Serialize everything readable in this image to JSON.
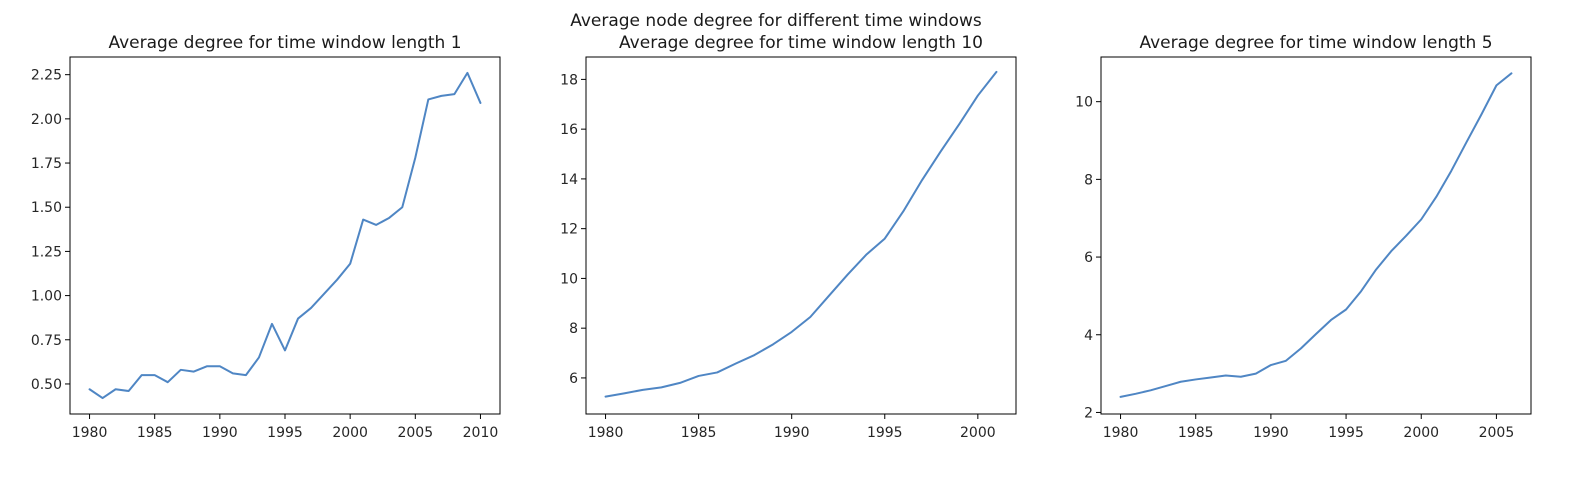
{
  "figure": {
    "suptitle": "Average node degree for different time windows"
  },
  "line_color": "#4f86c4",
  "chart_data": [
    {
      "type": "line",
      "title": "Average degree for time window length 1",
      "xlabel": "",
      "ylabel": "",
      "xlim": [
        1978.5,
        2011.5
      ],
      "ylim": [
        0.33,
        2.35
      ],
      "xticks": [
        1980,
        1985,
        1990,
        1995,
        2000,
        2005,
        2010
      ],
      "yticks": [
        0.5,
        0.75,
        1.0,
        1.25,
        1.5,
        1.75,
        2.0,
        2.25
      ],
      "ytick_labels": [
        "0.50",
        "0.75",
        "1.00",
        "1.25",
        "1.50",
        "1.75",
        "2.00",
        "2.25"
      ],
      "grid": false,
      "series": [
        {
          "x": [
            1980,
            1981,
            1982,
            1983,
            1984,
            1985,
            1986,
            1987,
            1988,
            1989,
            1990,
            1991,
            1992,
            1993,
            1994,
            1995,
            1996,
            1997,
            1998,
            1999,
            2000,
            2001,
            2002,
            2003,
            2004,
            2005,
            2006,
            2007,
            2008,
            2009,
            2010
          ],
          "y": [
            0.47,
            0.42,
            0.47,
            0.46,
            0.55,
            0.55,
            0.51,
            0.58,
            0.57,
            0.6,
            0.6,
            0.56,
            0.55,
            0.65,
            0.84,
            0.69,
            0.87,
            0.93,
            1.01,
            1.09,
            1.18,
            1.43,
            1.4,
            1.44,
            1.5,
            1.78,
            2.11,
            2.13,
            2.14,
            2.26,
            2.09
          ]
        }
      ]
    },
    {
      "type": "line",
      "title": "Average degree for time window length 10",
      "xlabel": "",
      "ylabel": "",
      "xlim": [
        1978.95,
        2002.05
      ],
      "ylim": [
        4.55,
        18.9
      ],
      "xticks": [
        1980,
        1985,
        1990,
        1995,
        2000
      ],
      "yticks": [
        6,
        8,
        10,
        12,
        14,
        16,
        18
      ],
      "ytick_labels": [
        "6",
        "8",
        "10",
        "12",
        "14",
        "16",
        "18"
      ],
      "grid": false,
      "series": [
        {
          "x": [
            1980,
            1981,
            1982,
            1983,
            1984,
            1985,
            1986,
            1987,
            1988,
            1989,
            1990,
            1991,
            1992,
            1993,
            1994,
            1995,
            1996,
            1997,
            1998,
            1999,
            2000,
            2001
          ],
          "y": [
            5.25,
            5.38,
            5.52,
            5.62,
            5.8,
            6.08,
            6.22,
            6.58,
            6.92,
            7.35,
            7.85,
            8.45,
            9.3,
            10.15,
            10.95,
            11.6,
            12.7,
            13.95,
            15.1,
            16.2,
            17.35,
            18.3
          ]
        }
      ]
    },
    {
      "type": "line",
      "title": "Average degree for time window length 5",
      "xlabel": "",
      "ylabel": "",
      "xlim": [
        1978.7,
        2007.3
      ],
      "ylim": [
        1.96,
        11.15
      ],
      "xticks": [
        1980,
        1985,
        1990,
        1995,
        2000,
        2005
      ],
      "yticks": [
        2,
        4,
        6,
        8,
        10
      ],
      "ytick_labels": [
        "2",
        "4",
        "6",
        "8",
        "10"
      ],
      "grid": false,
      "series": [
        {
          "x": [
            1980,
            1981,
            1982,
            1983,
            1984,
            1985,
            1986,
            1987,
            1988,
            1989,
            1990,
            1991,
            1992,
            1993,
            1994,
            1995,
            1996,
            1997,
            1998,
            1999,
            2000,
            2001,
            2002,
            2003,
            2004,
            2005,
            2006
          ],
          "y": [
            2.4,
            2.48,
            2.57,
            2.68,
            2.79,
            2.85,
            2.9,
            2.95,
            2.92,
            3.0,
            3.22,
            3.33,
            3.65,
            4.02,
            4.38,
            4.65,
            5.12,
            5.68,
            6.15,
            6.55,
            6.97,
            7.55,
            8.22,
            8.95,
            9.67,
            10.42,
            10.73
          ]
        }
      ]
    }
  ]
}
